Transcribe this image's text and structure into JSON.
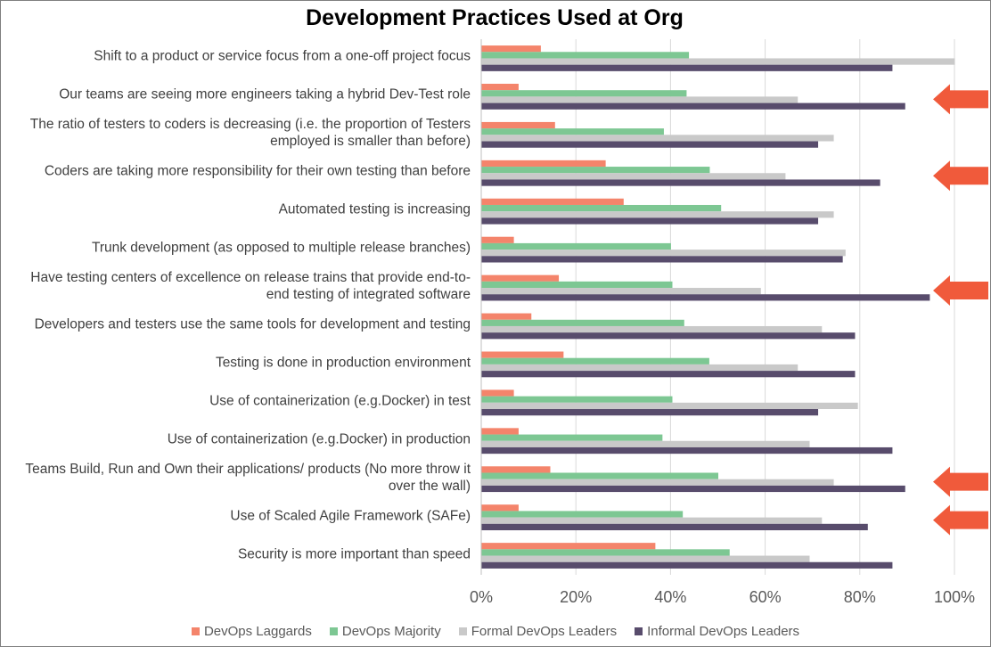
{
  "colors": {
    "laggards": "#f4846b",
    "majority": "#7dc793",
    "formal": "#c9c9c9",
    "informal": "#584c6c",
    "arrow": "#f05a3b",
    "gridline": "#d9d9d9"
  },
  "chart_data": {
    "type": "bar",
    "orientation": "horizontal",
    "title": "Development Practices Used at Org",
    "xlabel": "",
    "ylabel": "",
    "xlim": [
      0,
      100
    ],
    "x_ticks": [
      "0%",
      "20%",
      "40%",
      "60%",
      "80%",
      "100%"
    ],
    "grid": "vertical",
    "legend_position": "bottom",
    "categories": [
      "Shift to a product or service focus from a one-off project focus",
      "Our teams are seeing more engineers taking a hybrid Dev-Test role",
      "The ratio of testers to coders is decreasing (i.e. the proportion of Testers employed is smaller than before)",
      "Coders are taking more responsibility for their own testing than before",
      "Automated testing is increasing",
      "Trunk development (as opposed to multiple release branches)",
      "Have testing centers of excellence on release trains that provide end-to-end testing of integrated software",
      "Developers and testers use the same tools for development and testing",
      "Testing is done in production environment",
      "Use of containerization (e.g.Docker) in test",
      "Use of containerization (e.g.Docker) in production",
      "Teams Build, Run and Own their applications/ products (No more throw it over the wall)",
      "Use of Scaled Agile Framework (SAFe)",
      "Security is more important than speed"
    ],
    "category_lines": [
      [
        "Shift to a product or service focus from a one-off project focus"
      ],
      [
        "Our teams are seeing more engineers taking a hybrid Dev-Test role"
      ],
      [
        "The ratio of testers to coders is decreasing (i.e. the proportion of Testers",
        "employed is smaller than before)"
      ],
      [
        "Coders are taking more responsibility for their own testing than before"
      ],
      [
        "Automated testing is increasing"
      ],
      [
        "Trunk development (as opposed to multiple release branches)"
      ],
      [
        "Have testing centers of excellence on release trains that provide end-to-",
        "end testing of integrated software"
      ],
      [
        "Developers and testers use the same tools for development and testing"
      ],
      [
        "Testing is done in production environment"
      ],
      [
        "Use of containerization (e.g.Docker) in test"
      ],
      [
        "Use of containerization (e.g.Docker) in production"
      ],
      [
        "Teams Build, Run and Own their applications/ products (No more throw it",
        "over the wall)"
      ],
      [
        "Use of Scaled Agile Framework (SAFe)"
      ],
      [
        "Security is more important than speed"
      ]
    ],
    "series": [
      {
        "name": "DevOps Laggards",
        "key": "laggards",
        "values": [
          12.5,
          7.8,
          15.5,
          26.2,
          30.0,
          6.8,
          16.3,
          10.5,
          17.3,
          6.8,
          7.8,
          14.5,
          7.8,
          36.7
        ]
      },
      {
        "name": "DevOps Majority",
        "key": "majority",
        "values": [
          43.8,
          43.3,
          38.5,
          48.2,
          50.6,
          40.0,
          40.3,
          42.8,
          48.1,
          40.3,
          38.2,
          50.0,
          42.5,
          52.4
        ]
      },
      {
        "name": "Formal DevOps Leaders",
        "key": "formal",
        "values": [
          100.0,
          66.8,
          74.4,
          64.2,
          74.4,
          76.9,
          59.0,
          71.9,
          66.8,
          79.5,
          69.3,
          74.4,
          71.9,
          69.3
        ]
      },
      {
        "name": "Informal DevOps Leaders",
        "key": "informal",
        "values": [
          86.8,
          89.5,
          71.1,
          84.2,
          71.1,
          76.3,
          94.7,
          78.9,
          78.9,
          71.1,
          86.8,
          89.5,
          81.6,
          86.8
        ]
      }
    ],
    "highlighted_categories": [
      1,
      3,
      6,
      11,
      12
    ]
  }
}
